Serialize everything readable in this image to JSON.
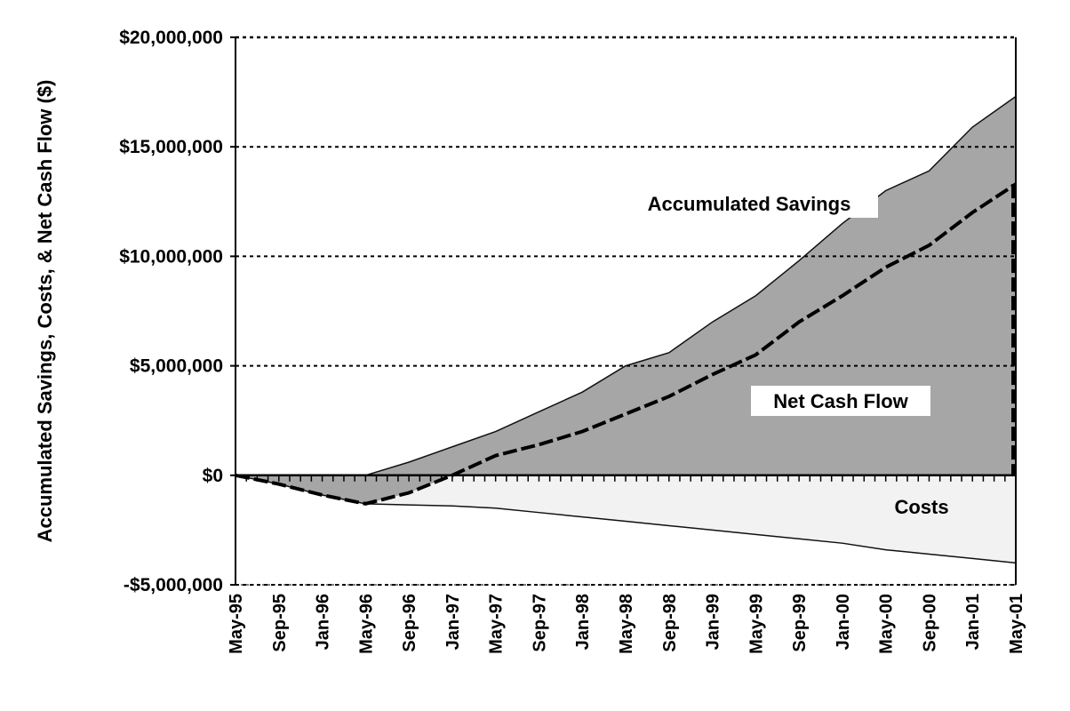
{
  "chart_data": {
    "type": "area",
    "ylabel": "Accumulated Savings, Costs, & Net Cash Flow ($)",
    "xlabel": "",
    "ylim": [
      -5000000,
      20000000
    ],
    "y_ticks": [
      -5000000,
      0,
      5000000,
      10000000,
      15000000,
      20000000
    ],
    "y_tick_labels": [
      "-$5,000,000",
      "$0",
      "$5,000,000",
      "$10,000,000",
      "$15,000,000",
      "$20,000,000"
    ],
    "x_tick_labels": [
      "May-95",
      "Sep-95",
      "Jan-96",
      "May-96",
      "Sep-96",
      "Jan-97",
      "May-97",
      "Sep-97",
      "Jan-98",
      "May-98",
      "Sep-98",
      "Jan-99",
      "May-99",
      "Sep-99",
      "Jan-00",
      "May-00",
      "Sep-00",
      "Jan-01",
      "May-01"
    ],
    "grid": "horizontal dotted",
    "annotations": [
      "Accumulated Savings",
      "Net Cash Flow",
      "Costs"
    ],
    "series": [
      {
        "name": "Accumulated Savings",
        "style": "filled area (dark gray)",
        "x": [
          "May-95",
          "Sep-95",
          "Jan-96",
          "May-96",
          "Sep-96",
          "Jan-97",
          "May-97",
          "Sep-97",
          "Jan-98",
          "May-98",
          "Sep-98",
          "Jan-99",
          "May-99",
          "Sep-99",
          "Jan-00",
          "May-00",
          "Sep-00",
          "Jan-01",
          "May-01"
        ],
        "values": [
          0,
          0,
          0,
          0,
          600000,
          1300000,
          2000000,
          2900000,
          3800000,
          5000000,
          5600000,
          7000000,
          8200000,
          9800000,
          11500000,
          13000000,
          13900000,
          15900000,
          17300000
        ]
      },
      {
        "name": "Costs",
        "style": "filled area (light gray)",
        "x": [
          "May-95",
          "Sep-95",
          "Jan-96",
          "May-96",
          "Sep-96",
          "Jan-97",
          "May-97",
          "Sep-97",
          "Jan-98",
          "May-98",
          "Sep-98",
          "Jan-99",
          "May-99",
          "Sep-99",
          "Jan-00",
          "May-00",
          "Sep-00",
          "Jan-01",
          "May-01"
        ],
        "values": [
          0,
          -400000,
          -900000,
          -1300000,
          -1350000,
          -1400000,
          -1500000,
          -1700000,
          -1900000,
          -2100000,
          -2300000,
          -2500000,
          -2700000,
          -2900000,
          -3100000,
          -3400000,
          -3600000,
          -3800000,
          -4000000
        ]
      },
      {
        "name": "Net Cash Flow",
        "style": "dashed line",
        "x": [
          "May-95",
          "Sep-95",
          "Jan-96",
          "May-96",
          "Sep-96",
          "Jan-97",
          "May-97",
          "Sep-97",
          "Jan-98",
          "May-98",
          "Sep-98",
          "Jan-99",
          "May-99",
          "Sep-99",
          "Jan-00",
          "May-00",
          "Sep-00",
          "Jan-01",
          "May-01"
        ],
        "values": [
          0,
          -400000,
          -900000,
          -1300000,
          -800000,
          0,
          900000,
          1400000,
          2000000,
          2800000,
          3600000,
          4600000,
          5500000,
          7000000,
          8200000,
          9500000,
          10500000,
          12000000,
          13300000
        ]
      }
    ]
  }
}
